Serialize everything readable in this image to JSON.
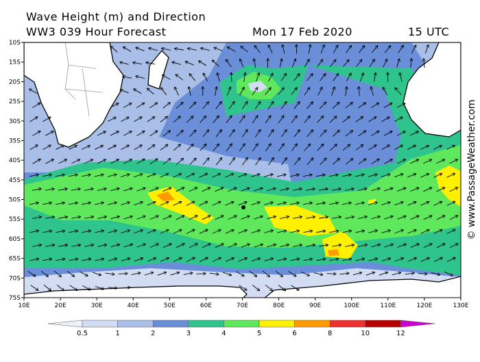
{
  "header": {
    "title": "Wave Height (m) and Direction",
    "model": "WW3 039 Hour Forecast",
    "date": "Mon 17 Feb 2020",
    "time": "15 UTC"
  },
  "watermark": "© www.PassageWeather.com",
  "latitude_labels": [
    "10S",
    "15S",
    "20S",
    "25S",
    "30S",
    "35S",
    "40S",
    "45S",
    "50S",
    "55S",
    "60S",
    "65S",
    "70S",
    "75S"
  ],
  "longitude_labels": [
    "10E",
    "20E",
    "30E",
    "40E",
    "50E",
    "60E",
    "70E",
    "80E",
    "90E",
    "100E",
    "110E",
    "120E",
    "130E"
  ],
  "legend": {
    "labels": [
      "0.5",
      "1",
      "2",
      "3",
      "4",
      "5",
      "6",
      "8",
      "10",
      "12"
    ],
    "colors": [
      "#eef2fb",
      "#d2dcf2",
      "#a9bfe8",
      "#6a8fd8",
      "#2fc48e",
      "#5fe85c",
      "#fff000",
      "#ff9a00",
      "#ee3030",
      "#b80000",
      "#d000d0"
    ]
  }
}
